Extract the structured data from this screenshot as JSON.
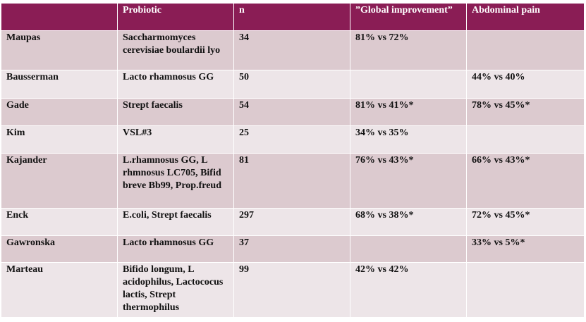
{
  "table": {
    "headers": [
      "",
      "Probiotic",
      "n",
      "”Global improvement”",
      "Abdominal pain"
    ],
    "rows": [
      [
        "Maupas",
        "Saccharmomyces cerevisiae boulardii lyo",
        "34",
        "81% vs 72%",
        ""
      ],
      [
        "Bausserman",
        "Lacto rhamnosus GG",
        "50",
        "",
        "44% vs 40%"
      ],
      [
        "Gade",
        "Strept faecalis",
        "54",
        "81% vs 41%*",
        "78% vs 45%*"
      ],
      [
        "Kim",
        "VSL#3",
        "25",
        "34% vs 35%",
        ""
      ],
      [
        "Kajander",
        "L.rhamnosus GG, L rhmnosus LC705, Bifid breve Bb99, Prop.freud",
        "81",
        "76% vs 43%*",
        "66% vs 43%*"
      ],
      [
        "Enck",
        "E.coli, Strept faecalis",
        "297",
        "68% vs 38%*",
        "72% vs 45%*"
      ],
      [
        "Gawronska",
        "Lacto rhamnosus GG",
        "37",
        "",
        "33% vs 5%*"
      ],
      [
        "Marteau",
        "Bifido longum, L acidophilus, Lactococus lactis, Strept thermophilus",
        "99",
        "42% vs 42%",
        ""
      ]
    ]
  },
  "colors": {
    "header_bg": "#8a1d55",
    "row_odd_bg": "#dccacf",
    "row_even_bg": "#ede5e8"
  }
}
